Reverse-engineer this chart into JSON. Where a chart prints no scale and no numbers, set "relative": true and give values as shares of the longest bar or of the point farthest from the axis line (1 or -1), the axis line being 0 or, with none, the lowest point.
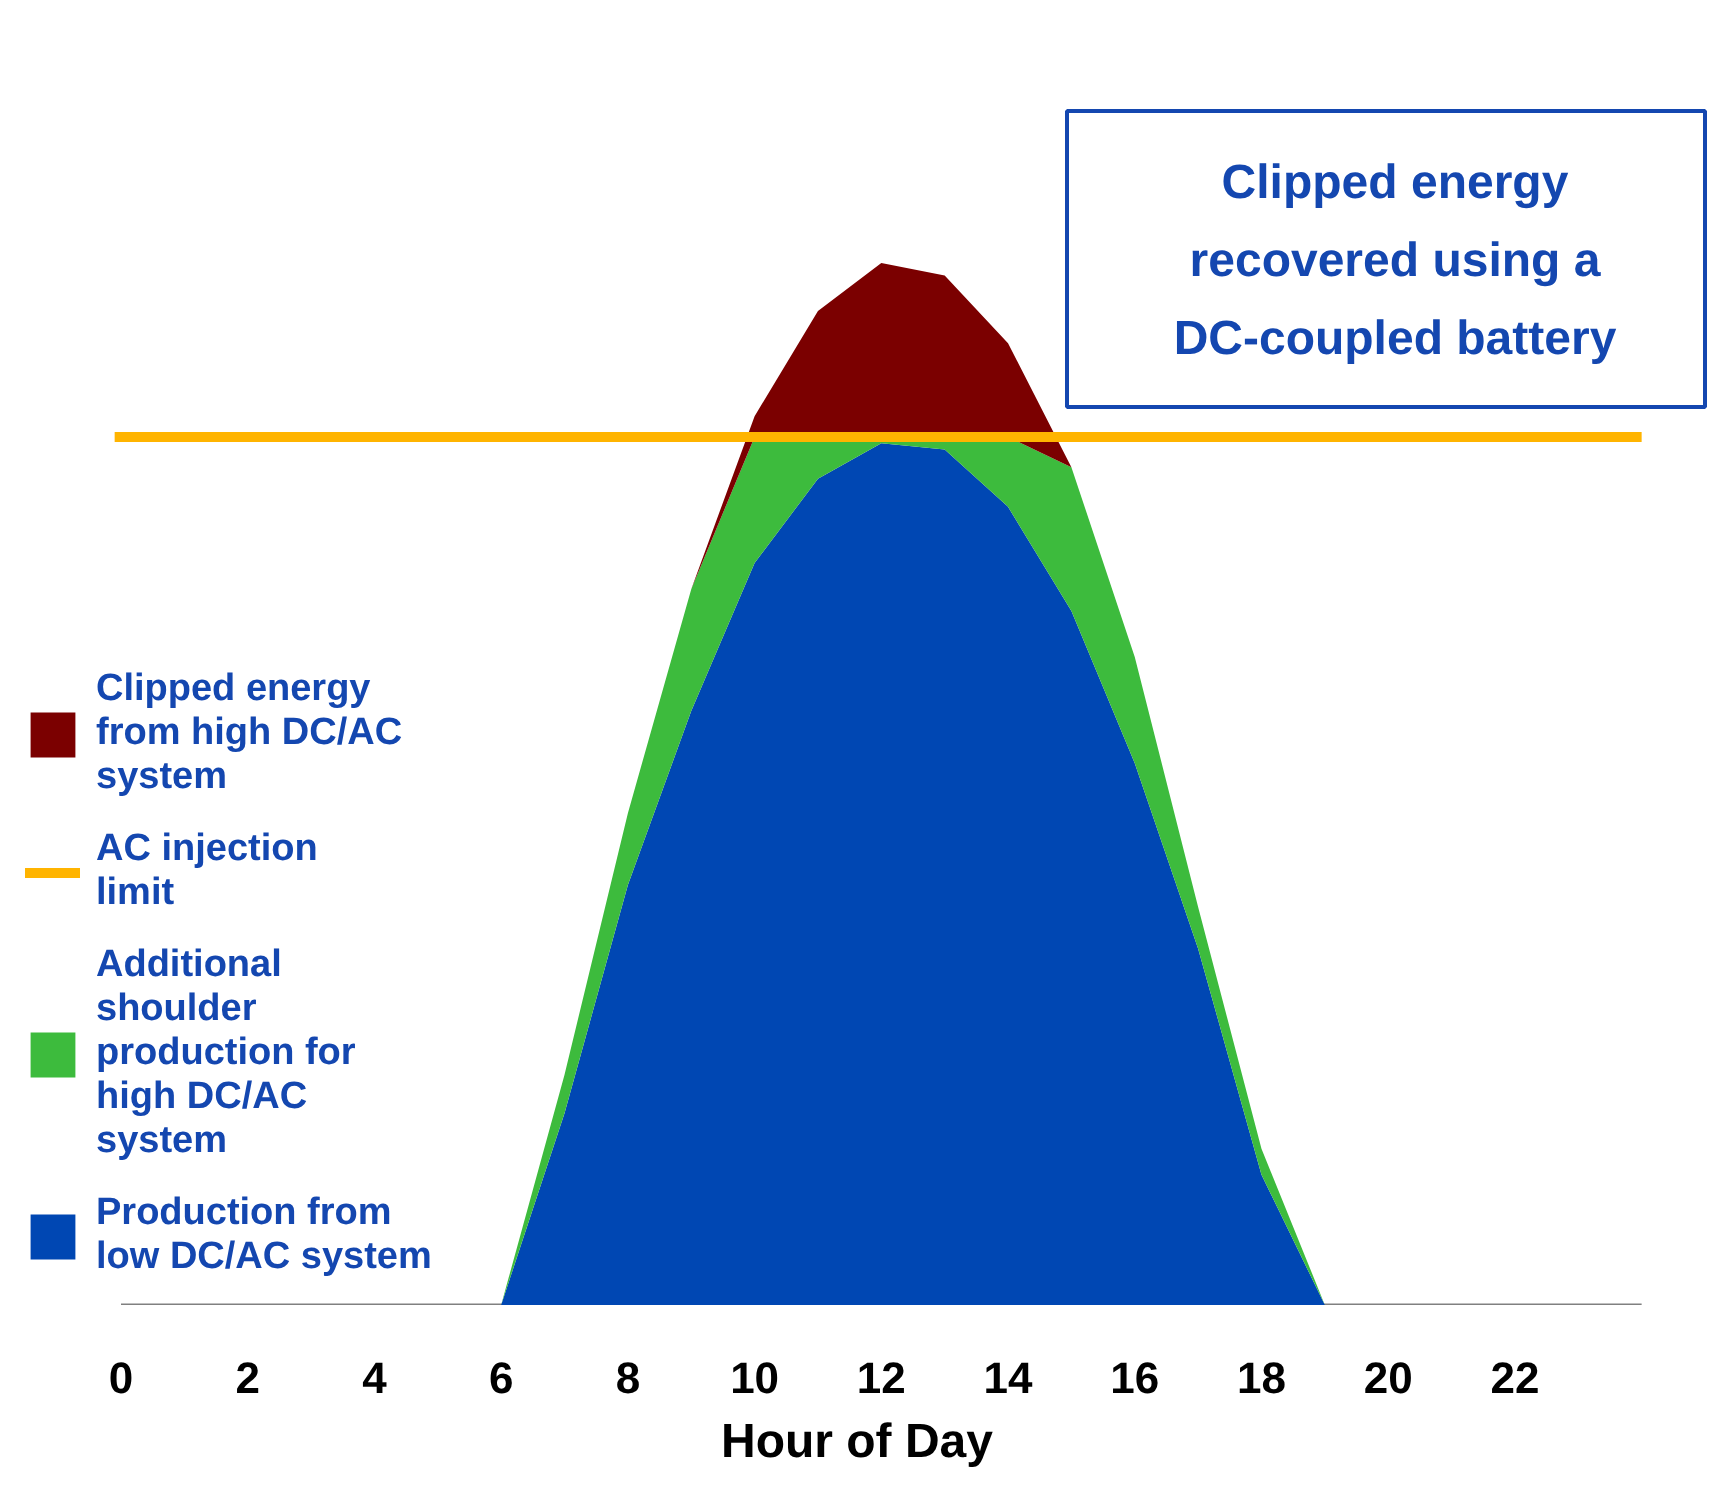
{
  "chart_data": {
    "type": "area",
    "stacked": true,
    "relative": true,
    "xlabel": "Hour of Day",
    "x": [
      6,
      7,
      8,
      9,
      10,
      11,
      12,
      13,
      14,
      15,
      16,
      17,
      18,
      19,
      20
    ],
    "xlim": [
      0,
      24
    ],
    "xticks": [
      0,
      2,
      4,
      6,
      8,
      10,
      12,
      14,
      16,
      18,
      20,
      22
    ],
    "grid": false,
    "legend": "bottom left",
    "series": [
      {
        "name": "Production from low DC/AC system",
        "color": "#0047b3",
        "values": [
          0,
          0.184,
          0.403,
          0.57,
          0.712,
          0.793,
          0.827,
          0.821,
          0.766,
          0.666,
          0.52,
          0.342,
          0.125,
          0,
          0
        ]
      },
      {
        "name": "Additional shoulder production for high DC/AC system",
        "color": "#3dbb3d",
        "values": [
          0,
          0.037,
          0.069,
          0.117,
          0.121,
          0.04,
          0.006,
          0.012,
          0.067,
          0.138,
          0.102,
          0.04,
          0.025,
          0,
          0
        ]
      },
      {
        "name": "Clipped energy from high DC/AC system",
        "color": "#7b0000",
        "values": [
          0,
          0,
          0,
          0,
          0.02,
          0.121,
          0.167,
          0.155,
          0.09,
          0,
          0,
          0,
          0,
          0,
          0
        ]
      }
    ],
    "ref_lines": [
      {
        "axis": "y",
        "value": 0.833,
        "label": "AC injection limit",
        "color": "#ffb400"
      }
    ],
    "annotations": [
      "Clipped energy recovered using a DC-coupled battery"
    ]
  }
}
